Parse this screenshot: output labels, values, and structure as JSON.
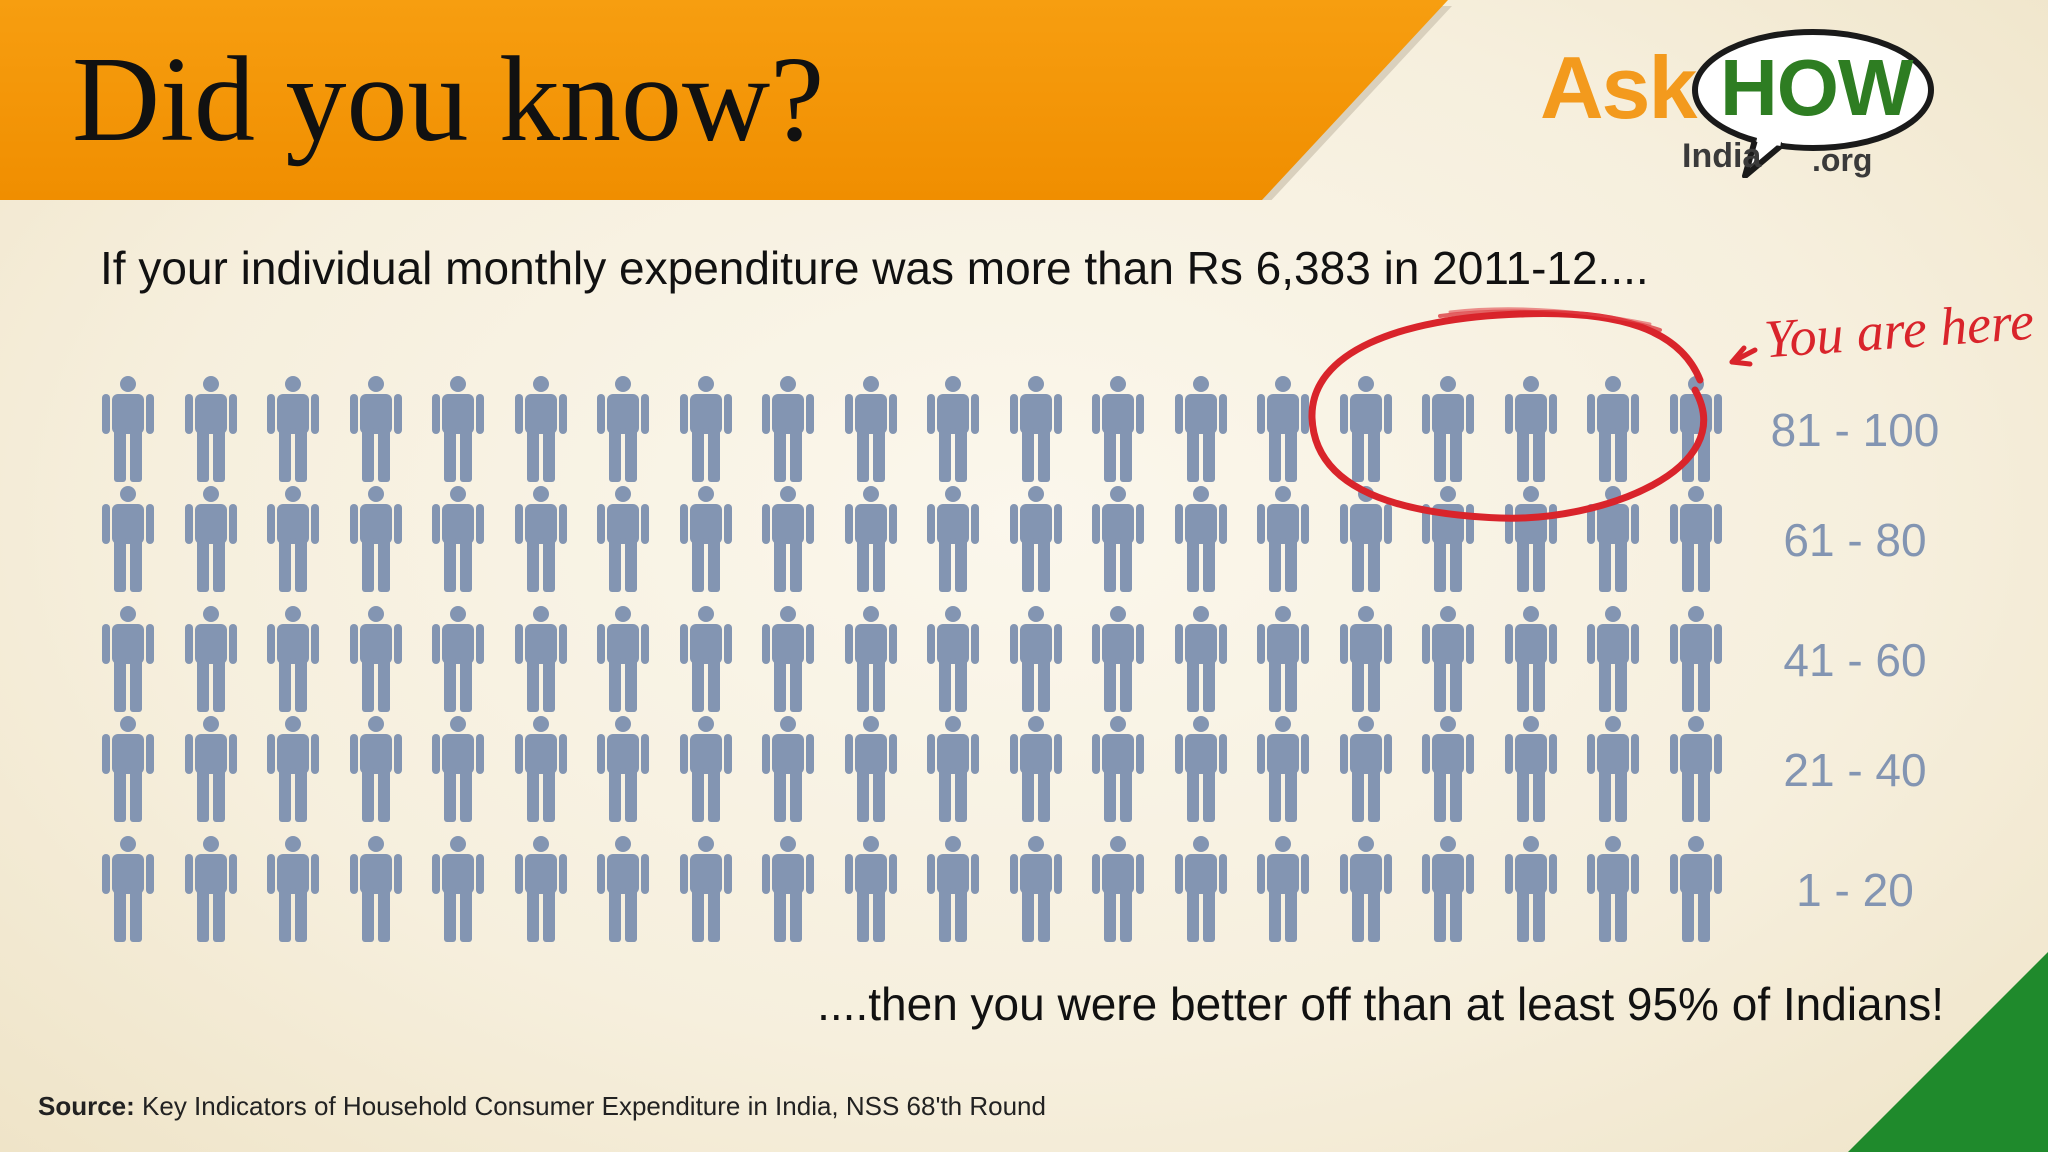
{
  "banner": {
    "title": "Did you know?",
    "color": "#f39508"
  },
  "logo": {
    "ask": "Ask",
    "how": "HOW",
    "india": "India",
    "org": ".org"
  },
  "headline": "If your individual monthly expenditure was more than Rs 6,383 in 2011-12....",
  "annotation": "You are here",
  "rows": [
    {
      "label": "81 - 100"
    },
    {
      "label": "61 - 80"
    },
    {
      "label": "41 - 60"
    },
    {
      "label": "21 - 40"
    },
    {
      "label": "1 - 20"
    }
  ],
  "people_per_row": 20,
  "highlighted": {
    "row_label": "81 - 100",
    "count": 5
  },
  "conclusion": "....then you were better off than at least 95% of Indians!",
  "source": {
    "label": "Source:",
    "text": " Key Indicators of Household Consumer Expenditure in India, NSS 68'th Round"
  },
  "colors": {
    "figure": "#8395b2",
    "highlight": "#d9242b",
    "accent_green": "#1f8a2c"
  },
  "icons": {
    "person": "person-icon"
  }
}
